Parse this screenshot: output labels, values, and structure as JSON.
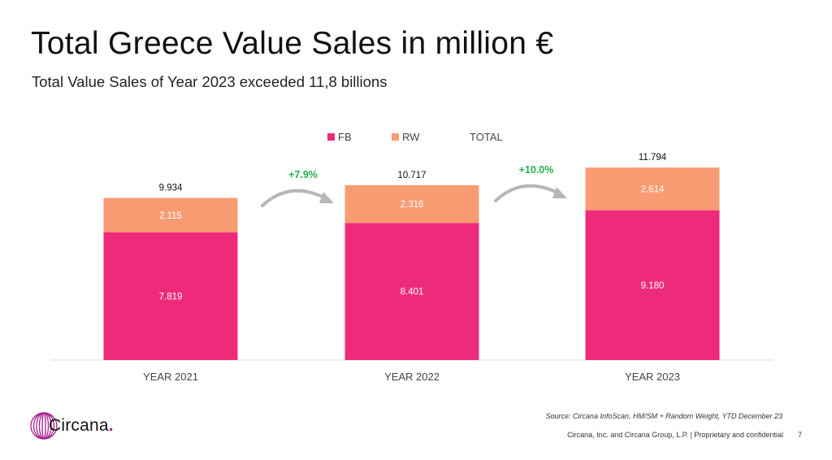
{
  "slide": {
    "title": "Total Greece Value Sales in million €",
    "subtitle": "Total Value Sales of Year 2023 exceeded 11,8 billions",
    "source": "Source: Circana InfoScan, HM/SM + Random Weight, YTD December 23",
    "footer": "Circana, Inc. and Circana Group, L.P. |  Proprietary and confidential",
    "page_number": "7",
    "logo_text": "Circana",
    "logo_dot": "."
  },
  "colors": {
    "fb": "#ee2b7b",
    "rw": "#f99b72",
    "growth": "#22b14c",
    "text": "#111111",
    "axis": "#d9d9d9",
    "brand": "#a31d8c"
  },
  "chart_data": {
    "type": "bar",
    "stacked": true,
    "title": "Total Greece Value Sales in million €",
    "categories": [
      "YEAR 2021",
      "YEAR 2022",
      "YEAR 2023"
    ],
    "series": [
      {
        "name": "FB",
        "color": "#ee2b7b",
        "values": [
          7819,
          8401,
          9180
        ],
        "labels": [
          "7.819",
          "8.401",
          "9.180"
        ]
      },
      {
        "name": "RW",
        "color": "#f99b72",
        "values": [
          2115,
          2316,
          2614
        ],
        "labels": [
          "2.115",
          "2.316",
          "2.614"
        ]
      }
    ],
    "totals": {
      "name": "TOTAL",
      "values": [
        9934,
        10717,
        11794
      ],
      "labels": [
        "9.934",
        "10.717",
        "11.794"
      ]
    },
    "growth": [
      {
        "from": "YEAR 2021",
        "to": "YEAR 2022",
        "label": "+7.9%"
      },
      {
        "from": "YEAR 2022",
        "to": "YEAR 2023",
        "label": "+10.0%"
      }
    ],
    "legend": [
      "FB",
      "RW",
      "TOTAL"
    ],
    "legend_position": "top-center",
    "ylim": [
      0,
      12500
    ],
    "grid": false,
    "xlabel": "",
    "ylabel": ""
  }
}
